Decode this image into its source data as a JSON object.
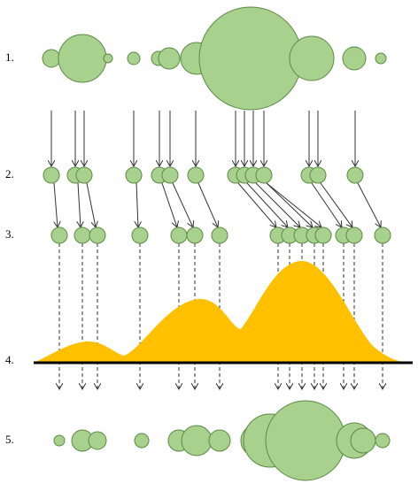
{
  "steps": [
    "1.",
    "2.",
    "3.",
    "4.",
    "5."
  ]
}
